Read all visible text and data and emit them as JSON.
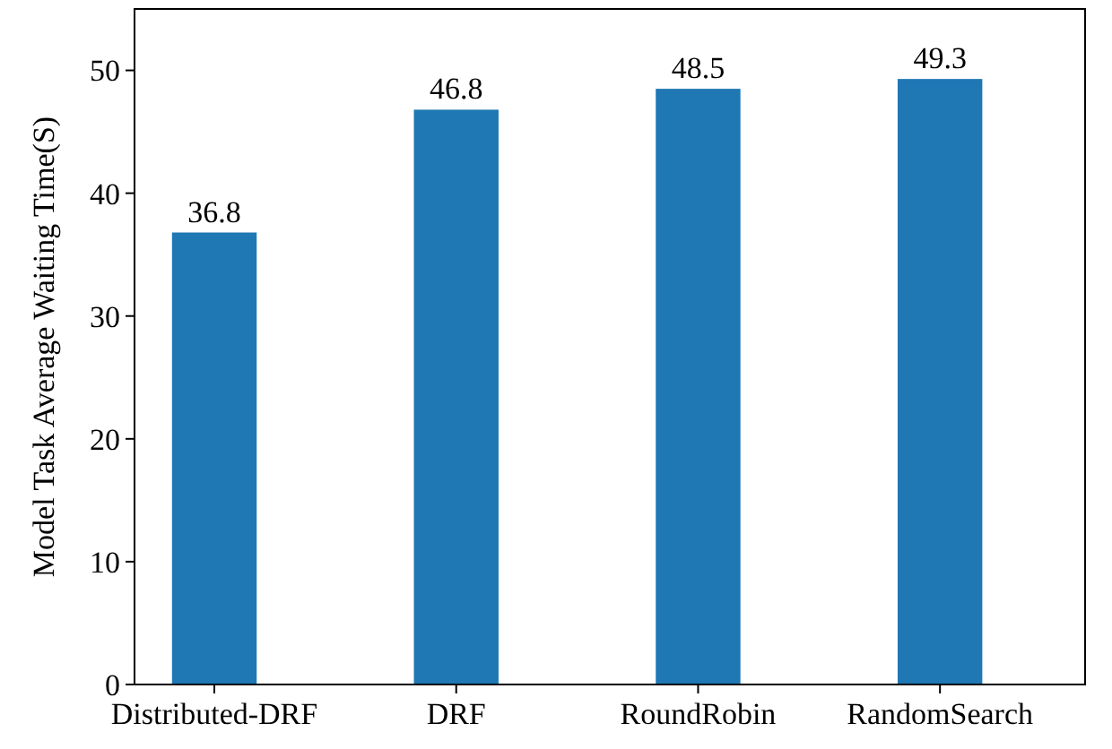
{
  "chart_data": {
    "type": "bar",
    "ylabel": "Model Task Average Waiting Time(S)",
    "categories": [
      "Distributed-DRF",
      "DRF",
      "RoundRobin",
      "RandomSearch"
    ],
    "values": [
      36.8,
      46.8,
      48.5,
      49.3
    ],
    "color": "#1f77b4",
    "data_labels": true,
    "ylim": [
      0,
      55
    ],
    "yticks": [
      0,
      10,
      20,
      30,
      40,
      50
    ],
    "grid": false
  }
}
